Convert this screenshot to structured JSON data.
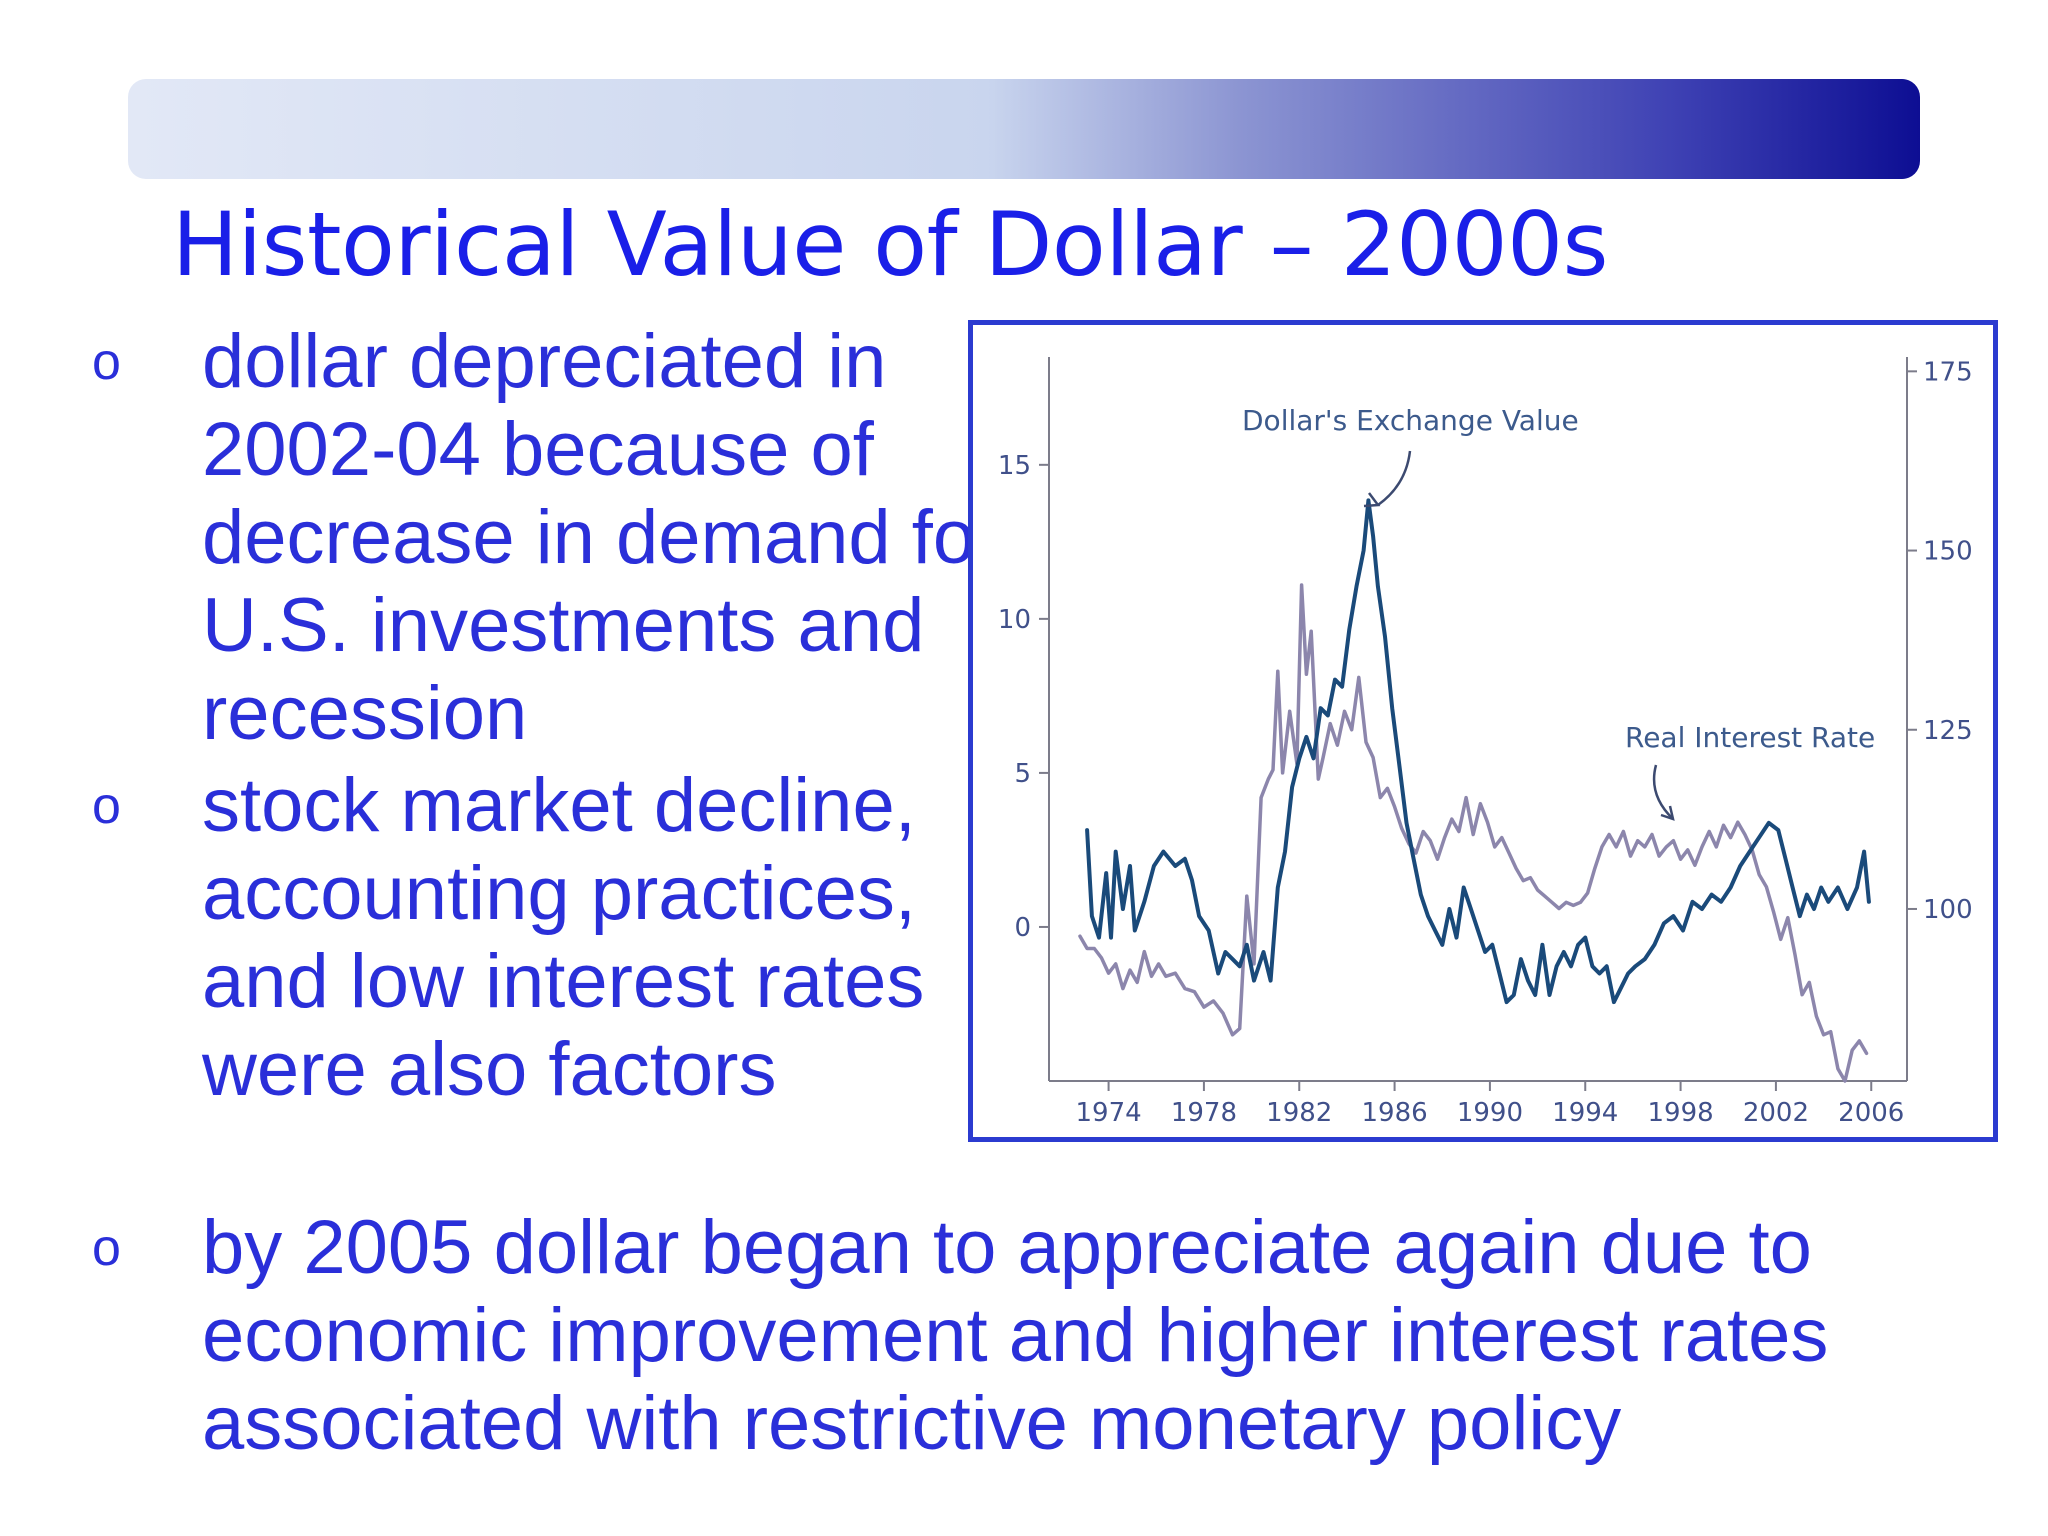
{
  "slide": {
    "title": "Historical Value of Dollar – 2000s",
    "bullet_marker": "o",
    "bullets": [
      "dollar depreciated in 2002-04 because of decrease in demand for U.S. investments and recession",
      "stock market decline, accounting practices, and low interest rates were also factors",
      "by 2005 dollar began to appreciate again due to economic improvement and higher interest rates associated with restrictive monetary policy"
    ]
  },
  "colors": {
    "title": "#1a1fe8",
    "bullet_text": "#2a2fd9",
    "chart_frame": "#2b3bd0",
    "exchange_value_line": "#1a4a7a",
    "real_interest_rate_line": "#8c86ac"
  },
  "chart_data": {
    "type": "line",
    "title": "",
    "x_ticks": [
      "1974",
      "1978",
      "1982",
      "1986",
      "1990",
      "1994",
      "1998",
      "2002",
      "2006"
    ],
    "x_range": [
      1971.5,
      2007.5
    ],
    "left_axis": {
      "ticks": [
        "0",
        "5",
        "10",
        "15"
      ],
      "range": [
        -5,
        18.5
      ]
    },
    "right_axis": {
      "ticks": [
        "100",
        "125",
        "150",
        "175"
      ],
      "range": [
        76,
        177
      ]
    },
    "grid": false,
    "annotations": [
      "Dollar's Exchange Value",
      "Real Interest Rate"
    ],
    "series": [
      {
        "name": "Dollar's Exchange Value",
        "axis": "right",
        "points": [
          [
            1973.1,
            111
          ],
          [
            1973.3,
            99
          ],
          [
            1973.6,
            96
          ],
          [
            1973.9,
            105
          ],
          [
            1974.1,
            96
          ],
          [
            1974.3,
            108
          ],
          [
            1974.6,
            100
          ],
          [
            1974.9,
            106
          ],
          [
            1975.1,
            97
          ],
          [
            1975.5,
            101
          ],
          [
            1975.9,
            106
          ],
          [
            1976.3,
            108
          ],
          [
            1976.8,
            106
          ],
          [
            1977.2,
            107
          ],
          [
            1977.5,
            104
          ],
          [
            1977.8,
            99
          ],
          [
            1978.2,
            97
          ],
          [
            1978.6,
            91
          ],
          [
            1978.9,
            94
          ],
          [
            1979.2,
            93
          ],
          [
            1979.5,
            92
          ],
          [
            1979.8,
            95
          ],
          [
            1980.1,
            90
          ],
          [
            1980.5,
            94
          ],
          [
            1980.8,
            90
          ],
          [
            1981.1,
            103
          ],
          [
            1981.4,
            108
          ],
          [
            1981.7,
            117
          ],
          [
            1982.0,
            121
          ],
          [
            1982.3,
            124
          ],
          [
            1982.6,
            121
          ],
          [
            1982.9,
            128
          ],
          [
            1983.2,
            127
          ],
          [
            1983.5,
            132
          ],
          [
            1983.8,
            131
          ],
          [
            1984.1,
            139
          ],
          [
            1984.4,
            145
          ],
          [
            1984.7,
            150
          ],
          [
            1984.9,
            157
          ],
          [
            1985.1,
            152
          ],
          [
            1985.3,
            145
          ],
          [
            1985.6,
            138
          ],
          [
            1985.9,
            128
          ],
          [
            1986.2,
            120
          ],
          [
            1986.5,
            112
          ],
          [
            1986.8,
            107
          ],
          [
            1987.1,
            102
          ],
          [
            1987.4,
            99
          ],
          [
            1987.7,
            97
          ],
          [
            1988.0,
            95
          ],
          [
            1988.3,
            100
          ],
          [
            1988.6,
            96
          ],
          [
            1988.9,
            103
          ],
          [
            1989.2,
            100
          ],
          [
            1989.5,
            97
          ],
          [
            1989.8,
            94
          ],
          [
            1990.1,
            95
          ],
          [
            1990.4,
            91
          ],
          [
            1990.7,
            87
          ],
          [
            1991.0,
            88
          ],
          [
            1991.3,
            93
          ],
          [
            1991.6,
            90
          ],
          [
            1991.9,
            88
          ],
          [
            1992.2,
            95
          ],
          [
            1992.5,
            88
          ],
          [
            1992.8,
            92
          ],
          [
            1993.1,
            94
          ],
          [
            1993.4,
            92
          ],
          [
            1993.7,
            95
          ],
          [
            1994.0,
            96
          ],
          [
            1994.3,
            92
          ],
          [
            1994.6,
            91
          ],
          [
            1994.9,
            92
          ],
          [
            1995.2,
            87
          ],
          [
            1995.5,
            89
          ],
          [
            1995.8,
            91
          ],
          [
            1996.1,
            92
          ],
          [
            1996.5,
            93
          ],
          [
            1996.9,
            95
          ],
          [
            1997.3,
            98
          ],
          [
            1997.7,
            99
          ],
          [
            1998.1,
            97
          ],
          [
            1998.5,
            101
          ],
          [
            1998.9,
            100
          ],
          [
            1999.3,
            102
          ],
          [
            1999.7,
            101
          ],
          [
            2000.1,
            103
          ],
          [
            2000.5,
            106
          ],
          [
            2000.9,
            108
          ],
          [
            2001.3,
            110
          ],
          [
            2001.7,
            112
          ],
          [
            2002.1,
            111
          ],
          [
            2002.4,
            107
          ],
          [
            2002.7,
            103
          ],
          [
            2003.0,
            99
          ],
          [
            2003.3,
            102
          ],
          [
            2003.6,
            100
          ],
          [
            2003.9,
            103
          ],
          [
            2004.2,
            101
          ],
          [
            2004.6,
            103
          ],
          [
            2005.0,
            100
          ],
          [
            2005.4,
            103
          ],
          [
            2005.7,
            108
          ],
          [
            2005.9,
            101
          ]
        ]
      },
      {
        "name": "Real Interest Rate",
        "axis": "left",
        "points": [
          [
            1972.8,
            -0.3
          ],
          [
            1973.1,
            -0.7
          ],
          [
            1973.4,
            -0.7
          ],
          [
            1973.7,
            -1.0
          ],
          [
            1974.0,
            -1.5
          ],
          [
            1974.3,
            -1.2
          ],
          [
            1974.6,
            -2.0
          ],
          [
            1974.9,
            -1.4
          ],
          [
            1975.2,
            -1.8
          ],
          [
            1975.5,
            -0.8
          ],
          [
            1975.8,
            -1.6
          ],
          [
            1976.1,
            -1.2
          ],
          [
            1976.4,
            -1.6
          ],
          [
            1976.8,
            -1.5
          ],
          [
            1977.2,
            -2.0
          ],
          [
            1977.6,
            -2.1
          ],
          [
            1978.0,
            -2.6
          ],
          [
            1978.4,
            -2.4
          ],
          [
            1978.8,
            -2.8
          ],
          [
            1979.2,
            -3.5
          ],
          [
            1979.5,
            -3.3
          ],
          [
            1979.8,
            1.0
          ],
          [
            1980.1,
            -1.2
          ],
          [
            1980.4,
            4.2
          ],
          [
            1980.7,
            4.8
          ],
          [
            1980.9,
            5.1
          ],
          [
            1981.1,
            8.3
          ],
          [
            1981.3,
            5.0
          ],
          [
            1981.6,
            7.0
          ],
          [
            1981.9,
            5.3
          ],
          [
            1982.1,
            11.1
          ],
          [
            1982.3,
            8.2
          ],
          [
            1982.5,
            9.6
          ],
          [
            1982.8,
            4.8
          ],
          [
            1983.0,
            5.5
          ],
          [
            1983.3,
            6.6
          ],
          [
            1983.6,
            5.9
          ],
          [
            1983.9,
            7.0
          ],
          [
            1984.2,
            6.4
          ],
          [
            1984.5,
            8.1
          ],
          [
            1984.8,
            6.0
          ],
          [
            1985.1,
            5.5
          ],
          [
            1985.4,
            4.2
          ],
          [
            1985.7,
            4.5
          ],
          [
            1986.0,
            3.9
          ],
          [
            1986.3,
            3.2
          ],
          [
            1986.6,
            2.7
          ],
          [
            1986.9,
            2.4
          ],
          [
            1987.2,
            3.1
          ],
          [
            1987.5,
            2.8
          ],
          [
            1987.8,
            2.2
          ],
          [
            1988.1,
            2.9
          ],
          [
            1988.4,
            3.5
          ],
          [
            1988.7,
            3.1
          ],
          [
            1989.0,
            4.2
          ],
          [
            1989.3,
            3.0
          ],
          [
            1989.6,
            4.0
          ],
          [
            1989.9,
            3.4
          ],
          [
            1990.2,
            2.6
          ],
          [
            1990.5,
            2.9
          ],
          [
            1990.8,
            2.4
          ],
          [
            1991.1,
            1.9
          ],
          [
            1991.4,
            1.5
          ],
          [
            1991.7,
            1.6
          ],
          [
            1992.0,
            1.2
          ],
          [
            1992.3,
            1.0
          ],
          [
            1992.6,
            0.8
          ],
          [
            1992.9,
            0.6
          ],
          [
            1993.2,
            0.8
          ],
          [
            1993.5,
            0.7
          ],
          [
            1993.8,
            0.8
          ],
          [
            1994.1,
            1.1
          ],
          [
            1994.4,
            1.9
          ],
          [
            1994.7,
            2.6
          ],
          [
            1995.0,
            3.0
          ],
          [
            1995.3,
            2.6
          ],
          [
            1995.6,
            3.1
          ],
          [
            1995.9,
            2.3
          ],
          [
            1996.2,
            2.8
          ],
          [
            1996.5,
            2.6
          ],
          [
            1996.8,
            3.0
          ],
          [
            1997.1,
            2.3
          ],
          [
            1997.4,
            2.6
          ],
          [
            1997.7,
            2.8
          ],
          [
            1998.0,
            2.2
          ],
          [
            1998.3,
            2.5
          ],
          [
            1998.6,
            2.0
          ],
          [
            1998.9,
            2.6
          ],
          [
            1999.2,
            3.1
          ],
          [
            1999.5,
            2.6
          ],
          [
            1999.8,
            3.3
          ],
          [
            2000.1,
            2.9
          ],
          [
            2000.4,
            3.4
          ],
          [
            2000.7,
            3.0
          ],
          [
            2001.0,
            2.5
          ],
          [
            2001.3,
            1.7
          ],
          [
            2001.6,
            1.3
          ],
          [
            2001.9,
            0.5
          ],
          [
            2002.2,
            -0.4
          ],
          [
            2002.5,
            0.3
          ],
          [
            2002.8,
            -0.9
          ],
          [
            2003.1,
            -2.2
          ],
          [
            2003.4,
            -1.8
          ],
          [
            2003.7,
            -2.9
          ],
          [
            2004.0,
            -3.5
          ],
          [
            2004.3,
            -3.4
          ],
          [
            2004.6,
            -4.6
          ],
          [
            2004.9,
            -5.0
          ],
          [
            2005.2,
            -4.0
          ],
          [
            2005.5,
            -3.7
          ],
          [
            2005.8,
            -4.1
          ]
        ]
      }
    ]
  }
}
